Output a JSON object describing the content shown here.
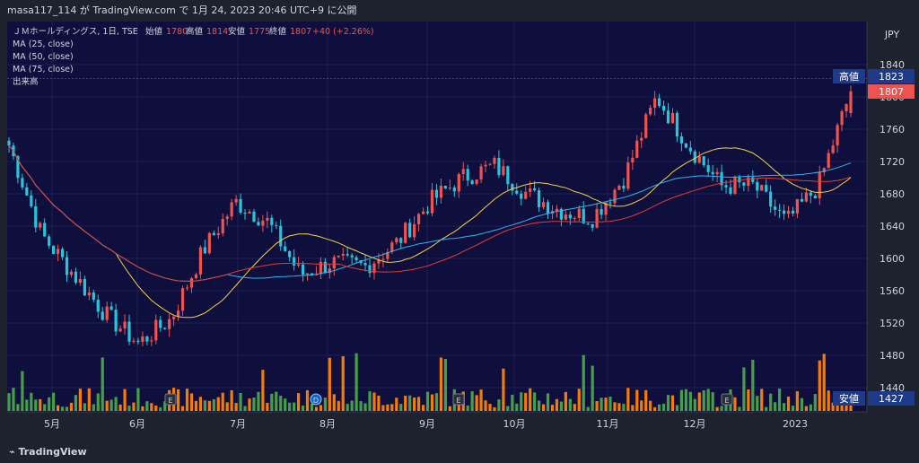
{
  "header": {
    "publish_line": "masa117_114 が TradingView.com で 1月 24, 2023 20:46 UTC+9 に公開"
  },
  "legend": {
    "symbol": "ＪＭホールディングス, 1日, TSE",
    "open_label": "始値",
    "open_value": "1780",
    "high_label": "高値",
    "high_value": "1814",
    "low_label": "安値",
    "low_value": "1775",
    "close_label": "終値",
    "close_value": "1807",
    "change": "+40 (+2.26%)",
    "indicators": [
      "MA (25, close)",
      "MA (50, close)",
      "MA (75, close)",
      "出来高"
    ]
  },
  "price_axis": {
    "currency": "JPY",
    "high_tag_label": "高値",
    "high_tag_value": "1823",
    "last_price": "1807",
    "low_tag_label": "安値",
    "low_tag_value": "1427"
  },
  "footer": {
    "brand": "TradingView"
  },
  "colors": {
    "up": "#ef5350",
    "down": "#26c6da",
    "vol_up": "#f57c00",
    "vol_down": "#43a047",
    "ma25": "#f4d03f",
    "ma50": "#29b6f6",
    "ma75": "#e53935",
    "background": "#0f0f3d",
    "axis_bg": "#1e222d"
  },
  "chart_data": {
    "type": "candlestick",
    "title": "ＪＭホールディングス, 1日, TSE",
    "currency": "JPY",
    "ylim": [
      1420,
      1860
    ],
    "y_ticks": [
      1440,
      1480,
      1520,
      1560,
      1600,
      1640,
      1680,
      1720,
      1760,
      1800,
      1840
    ],
    "x_tick_labels": [
      "5月",
      "6月",
      "7月",
      "8月",
      "9月",
      "10月",
      "11月",
      "12月",
      "2023"
    ],
    "last_ohlc": {
      "open": 1780,
      "high": 1814,
      "low": 1775,
      "close": 1807
    },
    "period_high": 1823,
    "period_low": 1427,
    "close_anchors": [
      {
        "month": "4月下旬",
        "close": 1740
      },
      {
        "month": "5月上旬",
        "close": 1630
      },
      {
        "month": "5月下旬",
        "close": 1580
      },
      {
        "month": "6月上旬",
        "close": 1530
      },
      {
        "month": "6月中旬",
        "close": 1495
      },
      {
        "month": "6月下旬",
        "close": 1525
      },
      {
        "month": "7月上旬",
        "close": 1610
      },
      {
        "month": "7月中旬",
        "close": 1670
      },
      {
        "month": "7月下旬",
        "close": 1645
      },
      {
        "month": "8月上旬",
        "close": 1580
      },
      {
        "month": "8月中旬",
        "close": 1595
      },
      {
        "month": "8月下旬",
        "close": 1590
      },
      {
        "month": "9月上旬",
        "close": 1620
      },
      {
        "month": "9月中旬",
        "close": 1670
      },
      {
        "month": "9月下旬",
        "close": 1700
      },
      {
        "month": "10月上旬",
        "close": 1715
      },
      {
        "month": "10月中旬",
        "close": 1680
      },
      {
        "month": "10月下旬",
        "close": 1660
      },
      {
        "month": "11月上旬",
        "close": 1650
      },
      {
        "month": "11月中旬",
        "close": 1700
      },
      {
        "month": "11月下旬",
        "close": 1800
      },
      {
        "month": "12月上旬",
        "close": 1740
      },
      {
        "month": "12月中旬",
        "close": 1690
      },
      {
        "month": "12月下旬",
        "close": 1690
      },
      {
        "month": "1月上旬",
        "close": 1645
      },
      {
        "month": "1月中旬",
        "close": 1690
      },
      {
        "month": "1月下旬",
        "close": 1807
      }
    ],
    "events": [
      {
        "type": "E",
        "month": "6月"
      },
      {
        "type": "D",
        "month": "8月"
      },
      {
        "type": "E",
        "month": "9月"
      },
      {
        "type": "E",
        "month": "12月"
      }
    ]
  }
}
